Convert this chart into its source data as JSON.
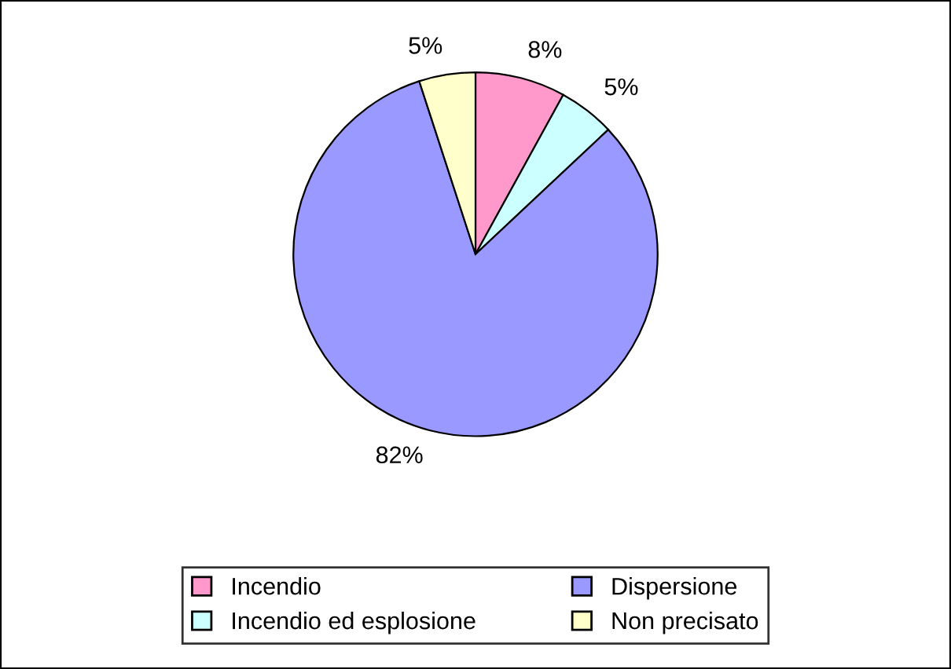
{
  "chart_data": {
    "type": "pie",
    "categories": [
      "Incendio",
      "Incendio ed esplosione",
      "Dispersione",
      "Non precisato"
    ],
    "values": [
      8,
      5,
      82,
      5
    ],
    "colors": [
      "#ff99cc",
      "#ccffff",
      "#9999ff",
      "#ffffcc"
    ],
    "value_labels": [
      "8%",
      "5%",
      "82%",
      "5%"
    ],
    "legend": "bottom"
  }
}
